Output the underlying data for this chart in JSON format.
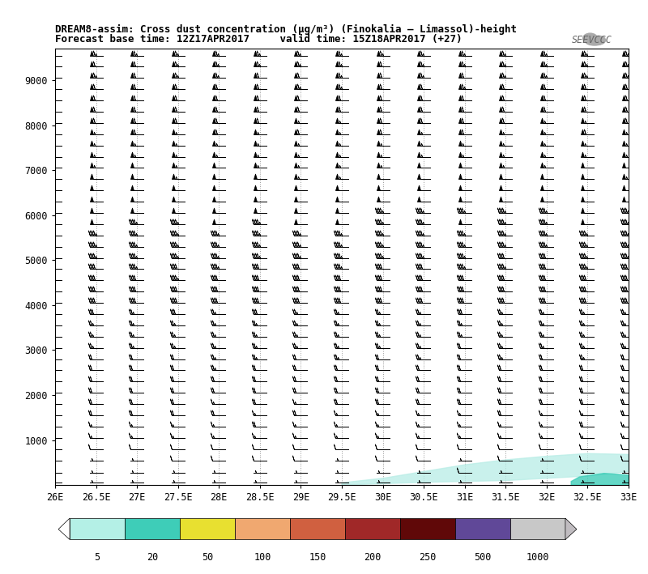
{
  "title_line1": "DREAM8-assim: Cross dust concentration (μg/m³) (Finokalia – Limassol)-height",
  "title_line2": "Forecast base time: 12Z17APR2017     valid time: 15Z18APR2017 (+27)",
  "xtick_labels": [
    "26E",
    "26.5E",
    "27E",
    "27.5E",
    "28E",
    "28.5E",
    "29E",
    "29.5E",
    "30E",
    "30.5E",
    "31E",
    "31.5E",
    "32E",
    "32.5E",
    "33E"
  ],
  "xtick_vals": [
    26.0,
    26.5,
    27.0,
    27.5,
    28.0,
    28.5,
    29.0,
    29.5,
    30.0,
    30.5,
    31.0,
    31.5,
    32.0,
    32.5,
    33.0
  ],
  "ytick_labels": [
    "1000",
    "2000",
    "3000",
    "4000",
    "5000",
    "6000",
    "7000",
    "8000",
    "9000"
  ],
  "ytick_vals": [
    1000,
    2000,
    3000,
    4000,
    5000,
    6000,
    7000,
    8000,
    9000
  ],
  "xmin": 26.0,
  "xmax": 33.0,
  "ymin": 0,
  "ymax": 9700,
  "barb_row_heights": [
    50,
    280,
    550,
    800,
    1050,
    1300,
    1550,
    1800,
    2050,
    2300,
    2550,
    2800,
    3050,
    3300,
    3550,
    3800,
    4050,
    4300,
    4550,
    4800,
    5050,
    5300,
    5550,
    5800,
    6050,
    6300,
    6550,
    6800,
    7050,
    7300,
    7550,
    7800,
    8050,
    8300,
    8550,
    8800,
    9050,
    9300,
    9550
  ],
  "colorbar_levels": [
    5,
    20,
    50,
    100,
    150,
    200,
    250,
    500,
    1000
  ],
  "colorbar_colors": [
    "#b4f0e6",
    "#3ecdb8",
    "#e8e030",
    "#f0a870",
    "#d06040",
    "#a02828",
    "#600808",
    "#604898",
    "#c8c8c8"
  ],
  "fill_light_color": "#b8ede6",
  "fill_dark_color": "#3ecdb8",
  "background_color": "#ffffff",
  "vgrid_color": "#999999",
  "barb_color": "#000000"
}
